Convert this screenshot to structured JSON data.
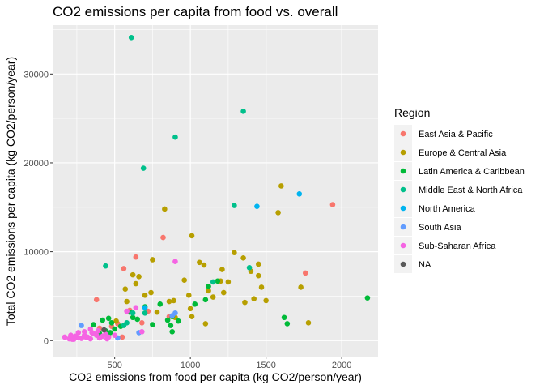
{
  "chart_data": {
    "type": "scatter",
    "title": "CO2 emissions per capita from food vs. overall",
    "xlabel": "CO2 emissions from food per capita (kg CO2/person/year)",
    "ylabel": "Total CO2 emissions per capita (kg CO2/person/year)",
    "xlim": [
      90,
      2240
    ],
    "ylim": [
      -1800,
      35500
    ],
    "x_ticks": [
      500,
      1000,
      1500,
      2000
    ],
    "y_ticks": [
      0,
      10000,
      20000,
      30000
    ],
    "grid": true,
    "legend_placement": "right",
    "legend_title": "Region",
    "series": [
      {
        "name": "East Asia & Pacific",
        "color": "#F8766D",
        "points": [
          [
            380,
            4600
          ],
          [
            560,
            8100
          ],
          [
            640,
            9400
          ],
          [
            820,
            11600
          ],
          [
            1940,
            15300
          ],
          [
            1760,
            7600
          ],
          [
            600,
            3400
          ],
          [
            720,
            3300
          ],
          [
            860,
            2700
          ],
          [
            480,
            1600
          ],
          [
            520,
            1900
          ],
          [
            680,
            2000
          ],
          [
            400,
            1400
          ],
          [
            550,
            400
          ]
        ]
      },
      {
        "name": "Europe & Central Asia",
        "color": "#B79F00",
        "points": [
          [
            830,
            14800
          ],
          [
            1010,
            11800
          ],
          [
            1600,
            17400
          ],
          [
            1580,
            14400
          ],
          [
            1290,
            9900
          ],
          [
            1090,
            8500
          ],
          [
            1210,
            8000
          ],
          [
            1350,
            9300
          ],
          [
            1450,
            8600
          ],
          [
            1400,
            7800
          ],
          [
            1200,
            6700
          ],
          [
            1060,
            8800
          ],
          [
            750,
            9100
          ],
          [
            570,
            5800
          ],
          [
            620,
            7400
          ],
          [
            660,
            7200
          ],
          [
            700,
            5100
          ],
          [
            740,
            5400
          ],
          [
            860,
            4400
          ],
          [
            890,
            4500
          ],
          [
            960,
            6800
          ],
          [
            990,
            5100
          ],
          [
            1000,
            3600
          ],
          [
            1120,
            5600
          ],
          [
            1150,
            4900
          ],
          [
            1250,
            6600
          ],
          [
            1360,
            4300
          ],
          [
            1420,
            4700
          ],
          [
            1450,
            7300
          ],
          [
            1500,
            4500
          ],
          [
            1470,
            6000
          ],
          [
            1730,
            6000
          ],
          [
            1780,
            2000
          ],
          [
            1100,
            1900
          ],
          [
            900,
            2600
          ],
          [
            780,
            3200
          ],
          [
            640,
            6400
          ],
          [
            580,
            4400
          ],
          [
            510,
            2200
          ],
          [
            1010,
            2700
          ],
          [
            1220,
            5400
          ]
        ]
      },
      {
        "name": "Latin America & Caribbean",
        "color": "#00BA38",
        "points": [
          [
            2170,
            4800
          ],
          [
            1620,
            2600
          ],
          [
            1640,
            1900
          ],
          [
            460,
            2500
          ],
          [
            420,
            2300
          ],
          [
            480,
            2000
          ],
          [
            500,
            1300
          ],
          [
            360,
            1800
          ],
          [
            400,
            800
          ],
          [
            440,
            1100
          ],
          [
            470,
            900
          ],
          [
            620,
            2600
          ],
          [
            700,
            3800
          ],
          [
            800,
            4100
          ],
          [
            870,
            1700
          ],
          [
            880,
            1000
          ],
          [
            920,
            2200
          ],
          [
            1100,
            4600
          ],
          [
            1120,
            6100
          ],
          [
            1180,
            6700
          ],
          [
            1030,
            4100
          ],
          [
            600,
            3200
          ],
          [
            650,
            2400
          ],
          [
            540,
            1600
          ],
          [
            750,
            1800
          ],
          [
            850,
            2300
          ],
          [
            880,
            2700
          ]
        ]
      },
      {
        "name": "Middle East & North Africa",
        "color": "#00C08B",
        "points": [
          [
            610,
            34100
          ],
          [
            1350,
            25800
          ],
          [
            900,
            22900
          ],
          [
            690,
            19400
          ],
          [
            1290,
            15200
          ],
          [
            440,
            8400
          ],
          [
            1150,
            6600
          ],
          [
            1390,
            8200
          ],
          [
            620,
            3100
          ],
          [
            580,
            2000
          ],
          [
            560,
            1700
          ],
          [
            700,
            3100
          ]
        ]
      },
      {
        "name": "North America",
        "color": "#00B4F0",
        "points": [
          [
            1720,
            16500
          ],
          [
            1440,
            15100
          ],
          [
            700,
            3700
          ]
        ]
      },
      {
        "name": "South Asia",
        "color": "#619CFF",
        "points": [
          [
            280,
            1700
          ],
          [
            520,
            300
          ],
          [
            900,
            3100
          ],
          [
            880,
            2800
          ],
          [
            660,
            900
          ]
        ]
      },
      {
        "name": "Sub-Saharan Africa",
        "color": "#F564E3",
        "points": [
          [
            170,
            400
          ],
          [
            200,
            200
          ],
          [
            220,
            150
          ],
          [
            240,
            500
          ],
          [
            260,
            300
          ],
          [
            280,
            250
          ],
          [
            300,
            600
          ],
          [
            320,
            400
          ],
          [
            340,
            200
          ],
          [
            360,
            800
          ],
          [
            380,
            600
          ],
          [
            400,
            300
          ],
          [
            420,
            500
          ],
          [
            440,
            700
          ],
          [
            460,
            400
          ],
          [
            340,
            1300
          ],
          [
            300,
            1000
          ],
          [
            260,
            900
          ],
          [
            500,
            600
          ],
          [
            580,
            3300
          ],
          [
            640,
            3700
          ],
          [
            680,
            1000
          ],
          [
            900,
            8900
          ],
          [
            230,
            150
          ],
          [
            310,
            400
          ],
          [
            350,
            900
          ],
          [
            390,
            1100
          ],
          [
            450,
            200
          ],
          [
            210,
            600
          ]
        ]
      },
      {
        "name": "NA",
        "color": "#595959",
        "points": [
          [
            430,
            1200
          ]
        ]
      }
    ]
  }
}
